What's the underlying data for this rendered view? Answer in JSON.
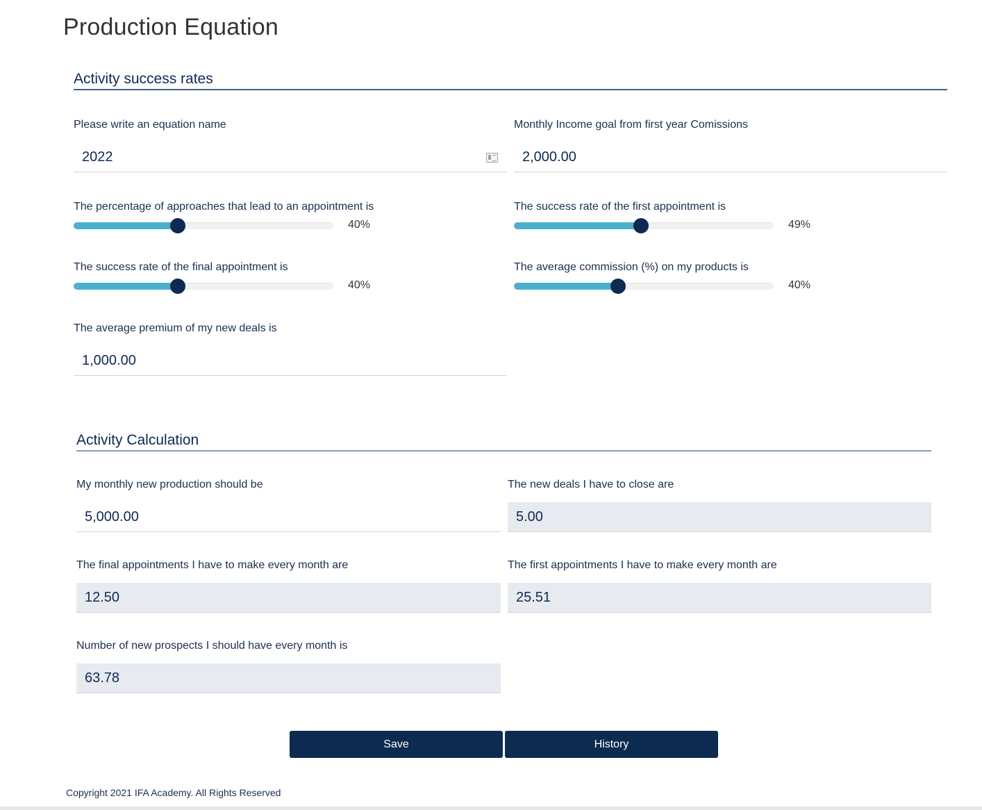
{
  "page": {
    "title": "Production Equation"
  },
  "activity_success_rates": {
    "header": "Activity success rates",
    "equation_name": {
      "label": "Please write an equation name",
      "value": "2022",
      "icon": "contact-card-icon"
    },
    "monthly_income_goal": {
      "label": "Monthly Income goal from first year Comissions",
      "value": "2,000.00"
    },
    "sliders": [
      {
        "label": "The percentage of approaches that lead to an appointment is",
        "value": 40,
        "display": "40%"
      },
      {
        "label": "The success rate of the first appointment is",
        "value": 49,
        "display": "49%"
      },
      {
        "label": "The success rate of the final appointment is",
        "value": 40,
        "display": "40%"
      },
      {
        "label": "The average commission (%) on my products is",
        "value": 40,
        "display": "40%"
      }
    ],
    "average_premium": {
      "label": "The average premium of my new deals is",
      "value": "1,000.00"
    }
  },
  "activity_calculation": {
    "header": "Activity Calculation",
    "monthly_new_production": {
      "label": "My monthly new production should be",
      "value": "5,000.00"
    },
    "new_deals": {
      "label": "The new deals I have to close are",
      "value": "5.00"
    },
    "final_appointments": {
      "label": "The final appointments I have to make every month are",
      "value": "12.50"
    },
    "first_appointments": {
      "label": "The first appointments I have to make every month are",
      "value": "25.51"
    },
    "new_prospects": {
      "label": "Number of new prospects I should have every month is",
      "value": "63.78"
    }
  },
  "actions": {
    "save_label": "Save",
    "history_label": "History"
  },
  "footer": {
    "copyright": "Copyright 2021 IFA Academy. All Rights Reserved"
  },
  "colors": {
    "primary": "#0d2a50",
    "slider_fill": "#4ab0cd",
    "readonly_bg": "#e7eaee"
  }
}
